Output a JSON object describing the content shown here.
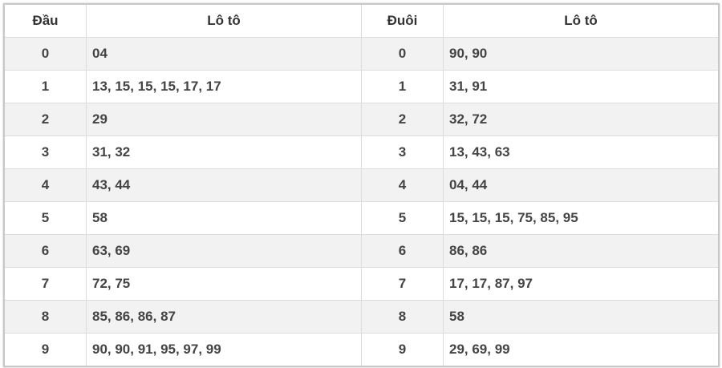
{
  "headers": {
    "dau": "Đầu",
    "loto_left": "Lô tô",
    "duoi": "Đuôi",
    "loto_right": "Lô tô"
  },
  "rows": [
    {
      "dau": "0",
      "dau_loto": "04",
      "duoi": "0",
      "duoi_loto": "90, 90"
    },
    {
      "dau": "1",
      "dau_loto": "13, 15, 15, 15, 17, 17",
      "duoi": "1",
      "duoi_loto": "31, 91"
    },
    {
      "dau": "2",
      "dau_loto": "29",
      "duoi": "2",
      "duoi_loto": "32, 72"
    },
    {
      "dau": "3",
      "dau_loto": "31, 32",
      "duoi": "3",
      "duoi_loto": "13, 43, 63"
    },
    {
      "dau": "4",
      "dau_loto": "43, 44",
      "duoi": "4",
      "duoi_loto": "04, 44"
    },
    {
      "dau": "5",
      "dau_loto": "58",
      "duoi": "5",
      "duoi_loto": "15, 15, 15, 75, 85, 95"
    },
    {
      "dau": "6",
      "dau_loto": "63, 69",
      "duoi": "6",
      "duoi_loto": "86, 86"
    },
    {
      "dau": "7",
      "dau_loto": "72, 75",
      "duoi": "7",
      "duoi_loto": "17, 17, 87, 97"
    },
    {
      "dau": "8",
      "dau_loto": "85, 86, 86, 87",
      "duoi": "8",
      "duoi_loto": "58"
    },
    {
      "dau": "9",
      "dau_loto": "90, 90, 91, 95, 97, 99",
      "duoi": "9",
      "duoi_loto": "29, 69, 99"
    }
  ]
}
